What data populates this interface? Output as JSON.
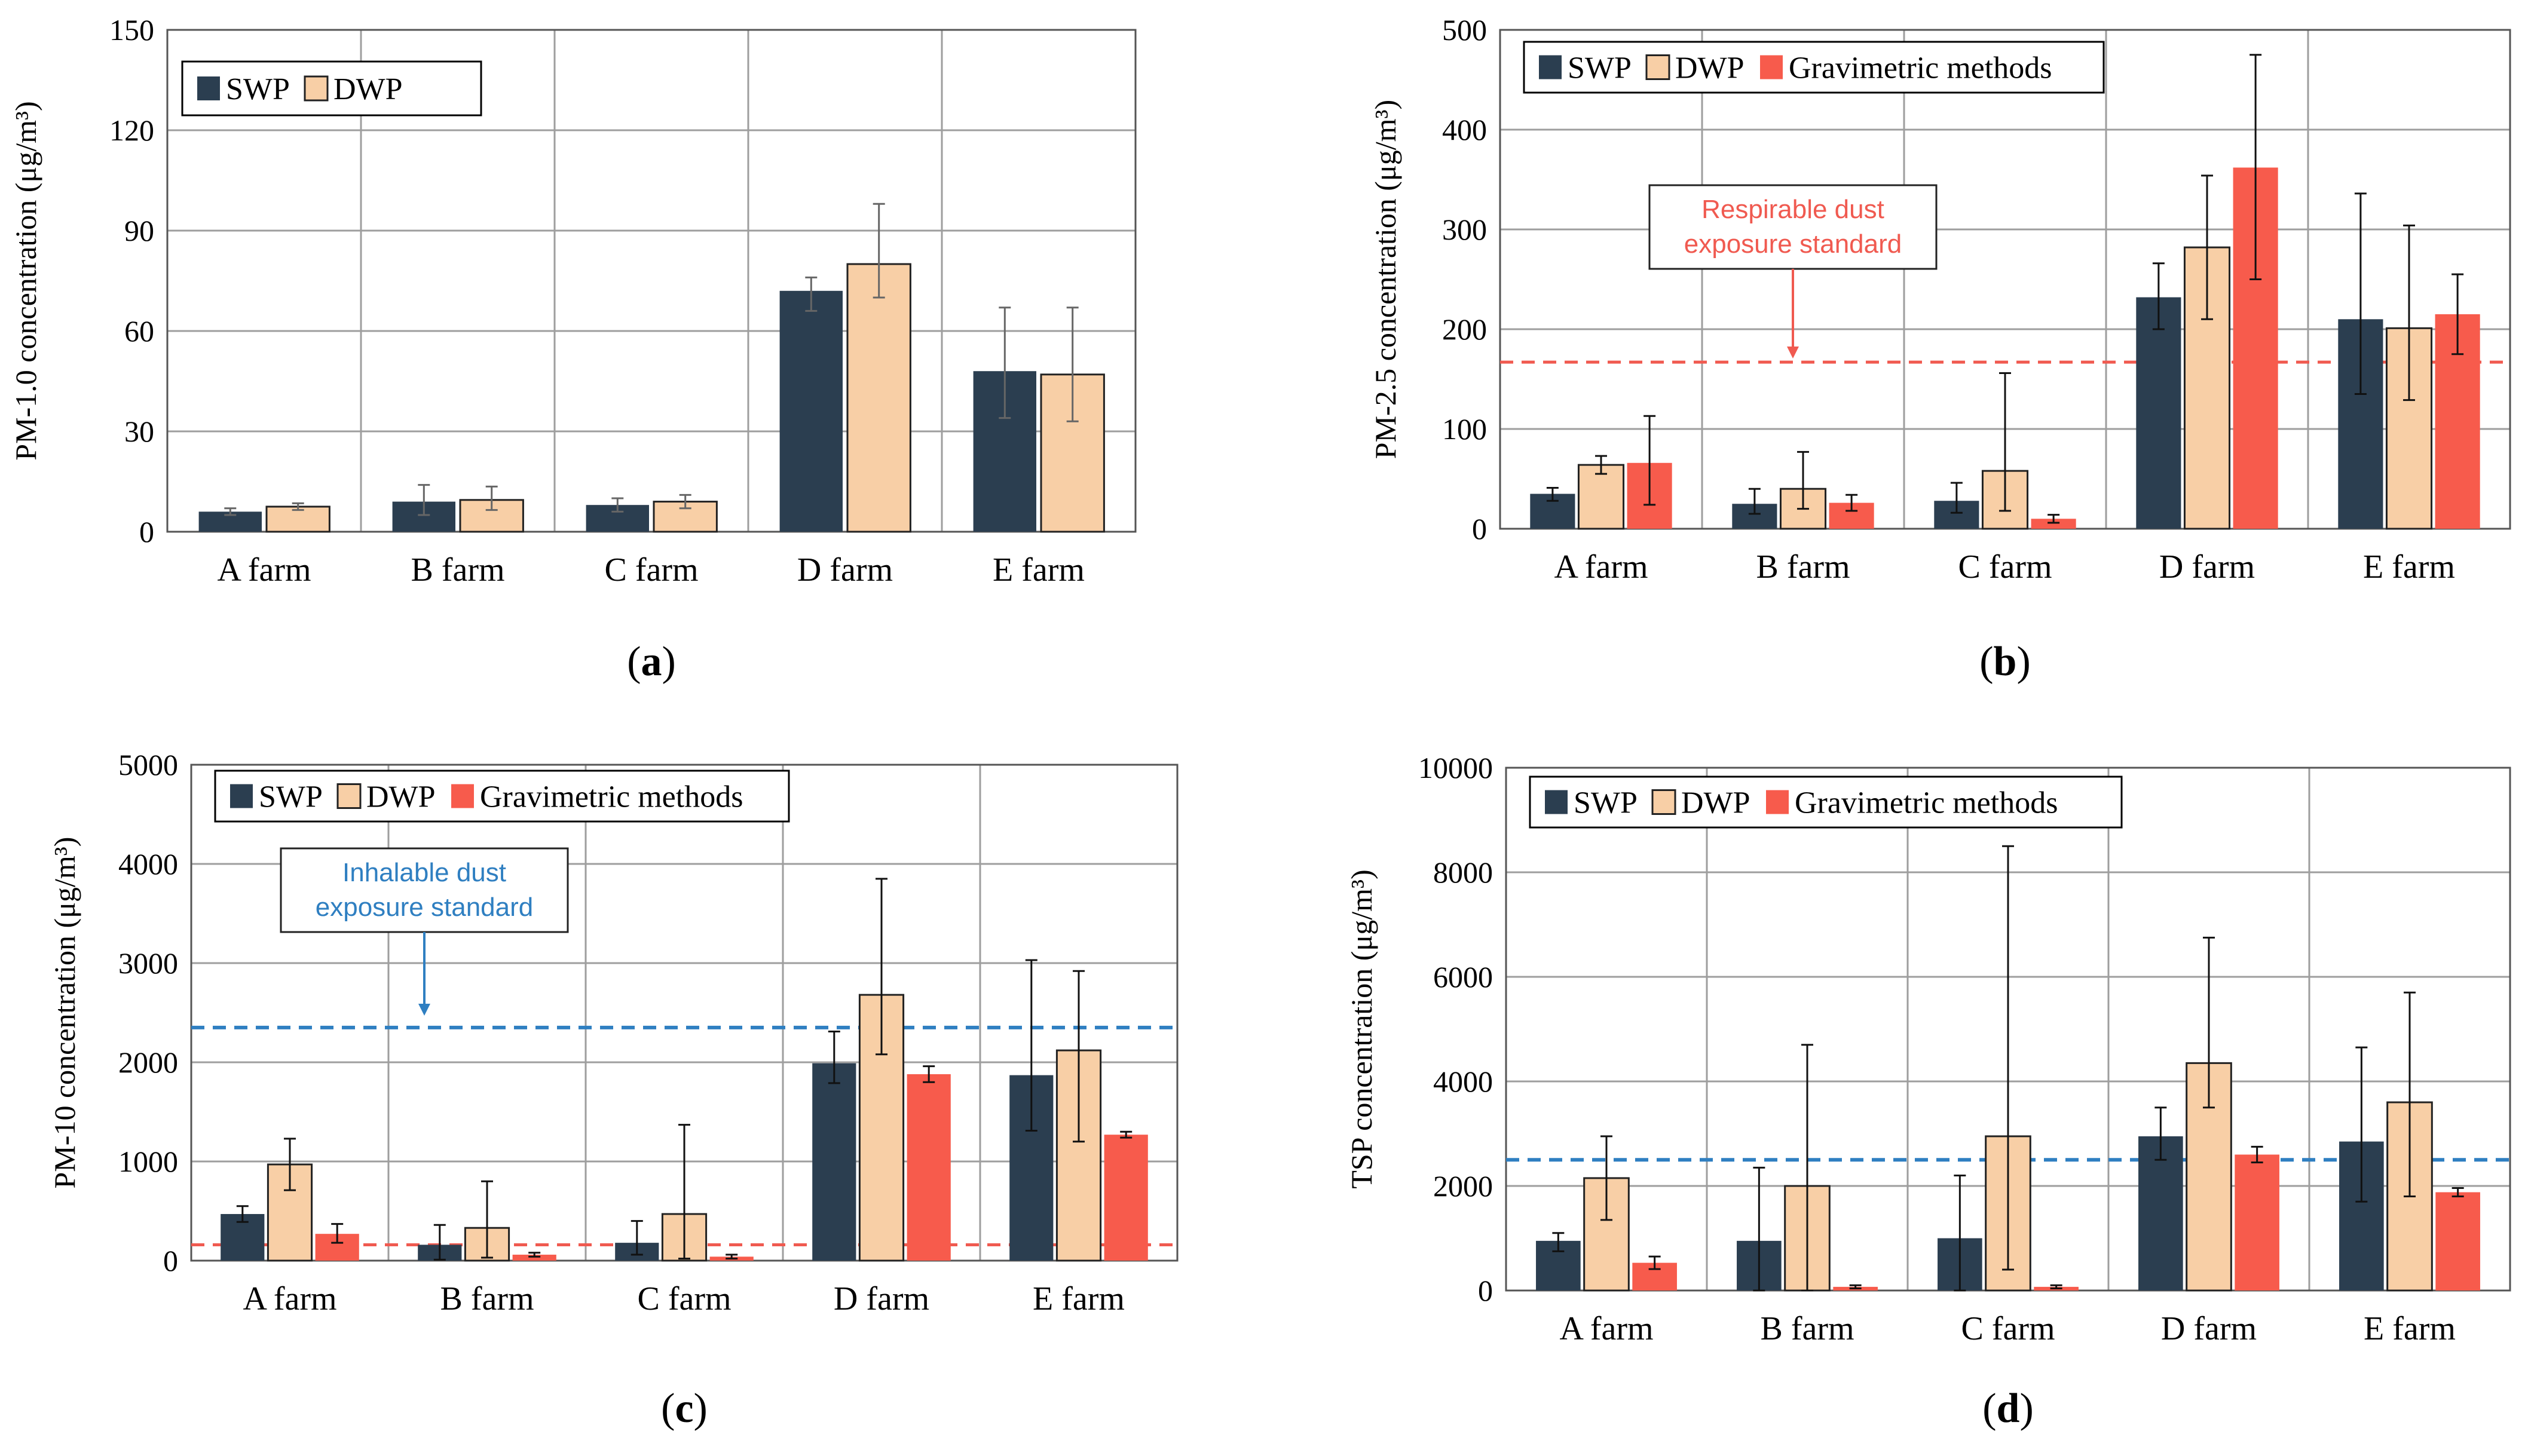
{
  "colors": {
    "SWP": "#2b3e50",
    "DWP": "#f8cfa6",
    "Gravimetric methods": "#f75b4c",
    "grid": "#9e9e9e",
    "red_line": "#f05a50",
    "blue_line": "#2f7fc1"
  },
  "chart_data": [
    {
      "panel": "a",
      "type": "bar",
      "caption": "(a)",
      "ylabel": "PM-1.0 concentration (μg/m³)",
      "xlabel": "",
      "ylim": [
        0,
        150
      ],
      "yticks": [
        0,
        30,
        60,
        90,
        120,
        150
      ],
      "categories": [
        "A farm",
        "B farm",
        "C farm",
        "D farm",
        "E farm"
      ],
      "legend": "top-left",
      "grid": true,
      "series": [
        {
          "name": "SWP",
          "values": [
            6,
            9,
            8,
            72,
            48
          ],
          "err_low": [
            1,
            4,
            2,
            6,
            14
          ],
          "err_high": [
            1,
            5,
            2,
            4,
            19
          ]
        },
        {
          "name": "DWP",
          "values": [
            7.5,
            9.5,
            9,
            80,
            47
          ],
          "err_low": [
            1,
            3,
            2,
            10,
            14
          ],
          "err_high": [
            1,
            4,
            2,
            18,
            20
          ]
        }
      ]
    },
    {
      "panel": "b",
      "type": "bar",
      "caption": "(b)",
      "ylabel": "PM-2.5 concentration (μg/m³)",
      "xlabel": "",
      "ylim": [
        0,
        500
      ],
      "yticks": [
        0,
        100,
        200,
        300,
        400,
        500
      ],
      "categories": [
        "A farm",
        "B farm",
        "C farm",
        "D farm",
        "E farm"
      ],
      "legend": "top-left",
      "grid": true,
      "series": [
        {
          "name": "SWP",
          "values": [
            35,
            25,
            28,
            232,
            210
          ],
          "err_low": [
            7,
            10,
            12,
            32,
            75
          ],
          "err_high": [
            6,
            15,
            18,
            34,
            126
          ]
        },
        {
          "name": "DWP",
          "values": [
            64,
            40,
            58,
            282,
            201
          ],
          "err_low": [
            9,
            20,
            40,
            72,
            72
          ],
          "err_high": [
            9,
            37,
            98,
            72,
            103
          ]
        },
        {
          "name": "Gravimetric methods",
          "values": [
            66,
            26,
            10,
            362,
            215
          ],
          "err_low": [
            42,
            8,
            4,
            112,
            40
          ],
          "err_high": [
            47,
            8,
            4,
            113,
            40
          ]
        }
      ],
      "reference_line": {
        "value": 167,
        "style": "dashed",
        "color": "red"
      },
      "annotation": "Respirable dust\nexposure standard"
    },
    {
      "panel": "c",
      "type": "bar",
      "caption": "(c)",
      "ylabel": "PM-10 concentration (μg/m³)",
      "xlabel": "",
      "ylim": [
        0,
        5000
      ],
      "yticks": [
        0,
        1000,
        2000,
        3000,
        4000,
        5000
      ],
      "categories": [
        "A farm",
        "B farm",
        "C farm",
        "D farm",
        "E farm"
      ],
      "legend": "top-left",
      "grid": true,
      "series": [
        {
          "name": "SWP",
          "values": [
            470,
            160,
            180,
            1990,
            1870
          ],
          "err_low": [
            80,
            150,
            120,
            200,
            560
          ],
          "err_high": [
            80,
            200,
            220,
            320,
            1160
          ]
        },
        {
          "name": "DWP",
          "values": [
            970,
            330,
            470,
            2680,
            2120
          ],
          "err_low": [
            260,
            300,
            450,
            600,
            920
          ],
          "err_high": [
            260,
            470,
            900,
            1170,
            800
          ]
        },
        {
          "name": "Gravimetric methods",
          "values": [
            270,
            60,
            40,
            1880,
            1270
          ],
          "err_low": [
            90,
            20,
            20,
            80,
            30
          ],
          "err_high": [
            100,
            20,
            20,
            80,
            30
          ]
        }
      ],
      "reference_lines": [
        {
          "value": 2350,
          "style": "dashed",
          "color": "blue"
        },
        {
          "value": 160,
          "style": "dashed",
          "color": "red"
        }
      ],
      "annotation": "Inhalable dust\nexposure standard"
    },
    {
      "panel": "d",
      "type": "bar",
      "caption": "(d)",
      "ylabel": "TSP concentration (μg/m³)",
      "xlabel": "",
      "ylim": [
        0,
        10000
      ],
      "yticks": [
        0,
        2000,
        4000,
        6000,
        8000,
        10000
      ],
      "categories": [
        "A farm",
        "B farm",
        "C farm",
        "D farm",
        "E farm"
      ],
      "legend": "top-left",
      "grid": true,
      "series": [
        {
          "name": "SWP",
          "values": [
            950,
            950,
            1000,
            2950,
            2850
          ],
          "err_low": [
            200,
            950,
            1000,
            450,
            1150
          ],
          "err_high": [
            150,
            1400,
            1200,
            550,
            1800
          ]
        },
        {
          "name": "DWP",
          "values": [
            2150,
            2000,
            2950,
            4350,
            3600
          ],
          "err_low": [
            800,
            2000,
            2550,
            850,
            1800
          ],
          "err_high": [
            800,
            2700,
            5550,
            2400,
            2100
          ]
        },
        {
          "name": "Gravimetric methods",
          "values": [
            530,
            70,
            70,
            2600,
            1880
          ],
          "err_low": [
            120,
            30,
            30,
            150,
            80
          ],
          "err_high": [
            120,
            30,
            30,
            150,
            80
          ]
        }
      ],
      "reference_line": {
        "value": 2500,
        "style": "dashed",
        "color": "blue"
      }
    }
  ]
}
